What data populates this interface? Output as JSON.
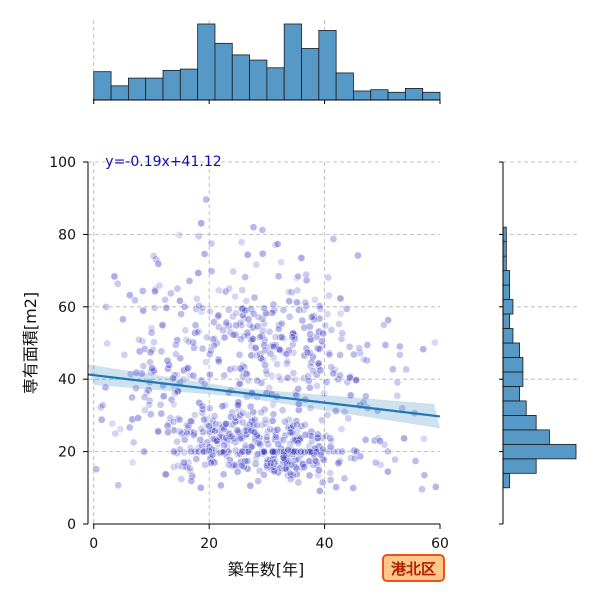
{
  "chart_data": {
    "type": "scatter",
    "xlabel": "築年数[年]",
    "ylabel": "専有面積[m2]",
    "xlim": [
      -1,
      60
    ],
    "ylim": [
      0,
      100
    ],
    "xticks": [
      0,
      20,
      40,
      60
    ],
    "yticks": [
      0,
      20,
      40,
      60,
      80,
      100
    ],
    "grid": true,
    "point_color": "#3b3bc8",
    "regression": {
      "equation": "y=-0.19x+41.12",
      "slope": -0.19,
      "intercept": 41.12,
      "color": "#1f77b4"
    },
    "badge": {
      "text": "港北区",
      "fill": "#ffc78a",
      "border": "#e8541c"
    },
    "marginal_x_histogram": {
      "bin_edges": [
        0,
        3,
        6,
        9,
        12,
        15,
        18,
        21,
        24,
        27,
        30,
        33,
        36,
        39,
        42,
        45,
        48,
        51,
        54,
        57,
        60
      ],
      "counts": [
        22,
        11,
        17,
        17,
        23,
        24,
        59,
        44,
        35,
        31,
        25,
        59,
        40,
        54,
        21,
        7,
        8,
        6,
        9,
        6
      ]
    },
    "marginal_y_histogram": {
      "bin_edges": [
        10,
        14,
        18,
        22,
        26,
        30,
        34,
        38,
        42,
        46,
        50,
        54,
        58,
        62,
        66,
        70,
        74,
        78,
        82
      ],
      "counts": [
        2,
        10,
        22,
        14,
        10,
        7,
        5,
        6,
        6,
        5,
        3,
        2,
        3,
        2,
        2,
        1,
        1,
        1
      ]
    }
  }
}
